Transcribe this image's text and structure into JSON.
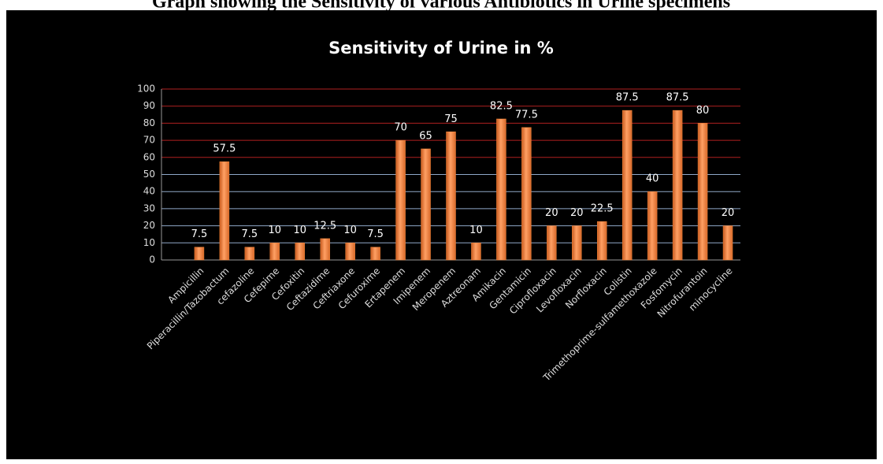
{
  "caption": "Graph showing the Sensitivity of various Antibiotics in Urine specimens",
  "chart_data": {
    "type": "bar",
    "title": "Sensitivity of Urine in %",
    "categories": [
      "Ampicillin",
      "Piperacillin/Tazobactum",
      "cefazoline",
      "Cefepime",
      "Cefoxitin",
      "Ceftazidime",
      "Ceftriaxone",
      "Cefuroxime",
      "Ertapenem",
      "Imipenem",
      "Meropenem",
      "Aztreonam",
      "Amikacin",
      "Gentamicin",
      "Ciprofloxacin",
      "Levofloxacin",
      "Norfloxacin",
      "Colistin",
      "Trimethoprime-sulfamethoxazole",
      "Fosfomycin",
      "Nitrofurantoin",
      "minocycline"
    ],
    "values": [
      7.5,
      57.5,
      7.5,
      10,
      10,
      12.5,
      10,
      7.5,
      70,
      65,
      75,
      10,
      82.5,
      77.5,
      20,
      20,
      22.5,
      87.5,
      40,
      87.5,
      80,
      20
    ],
    "color": "#f08438",
    "ylim": [
      0,
      100
    ],
    "yticks": [
      0,
      10,
      20,
      30,
      40,
      50,
      60,
      70,
      80,
      90,
      100
    ],
    "grid": true
  }
}
